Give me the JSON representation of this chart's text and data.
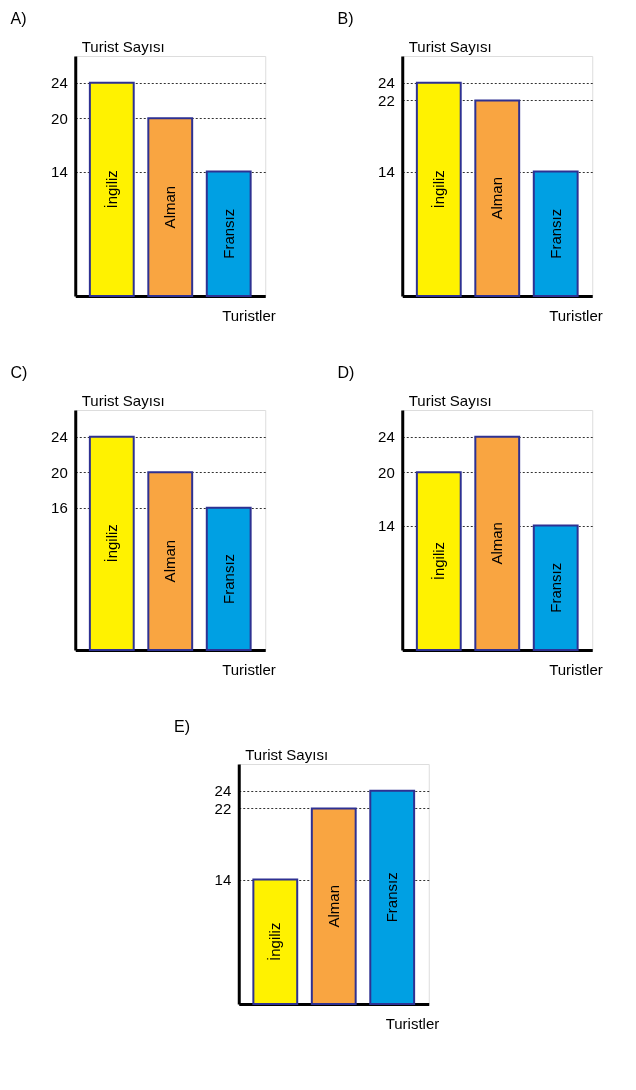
{
  "chart_data": [
    {
      "type": "bar",
      "title": "A)",
      "xlabel": "Turistler",
      "ylabel": "Turist Sayısı",
      "categories": [
        "İngiliz",
        "Alman",
        "Fransız"
      ],
      "values": [
        24,
        20,
        14
      ],
      "colors": [
        "#fff200",
        "#f9a541",
        "#00a0e3"
      ],
      "ylim": [
        0,
        27
      ],
      "yticks": [
        14,
        20,
        24
      ],
      "grid": "y",
      "line_style": "dotted",
      "tick_labels": "y",
      "legend": false
    },
    {
      "type": "bar",
      "title": "B)",
      "xlabel": "Turistler",
      "ylabel": "Turist Sayısı",
      "categories": [
        "İngiliz",
        "Alman",
        "Fransız"
      ],
      "values": [
        24,
        22,
        14
      ],
      "colors": [
        "#fff200",
        "#f9a541",
        "#00a0e3"
      ],
      "ylim": [
        0,
        27
      ],
      "yticks": [
        14,
        22,
        24
      ],
      "grid": "y",
      "line_style": "dotted",
      "tick_labels": "y",
      "legend": false
    },
    {
      "type": "bar",
      "title": "C)",
      "xlabel": "Turistler",
      "ylabel": "Turist Sayısı",
      "categories": [
        "İngiliz",
        "Alman",
        "Fransız"
      ],
      "values": [
        24,
        20,
        16
      ],
      "colors": [
        "#fff200",
        "#f9a541",
        "#00a0e3"
      ],
      "ylim": [
        0,
        27
      ],
      "yticks": [
        16,
        20,
        24
      ],
      "grid": "y",
      "line_style": "dotted",
      "tick_labels": "y",
      "legend": false
    },
    {
      "type": "bar",
      "title": "D)",
      "xlabel": "Turistler",
      "ylabel": "Turist Sayısı",
      "categories": [
        "İngiliz",
        "Alman",
        "Fransız"
      ],
      "values": [
        20,
        24,
        14
      ],
      "colors": [
        "#fff200",
        "#f9a541",
        "#00a0e3"
      ],
      "ylim": [
        0,
        27
      ],
      "yticks": [
        14,
        20,
        24
      ],
      "grid": "y",
      "line_style": "dotted",
      "tick_labels": "y",
      "legend": false
    },
    {
      "type": "bar",
      "title": "E)",
      "xlabel": "Turistler",
      "ylabel": "Turist Sayısı",
      "categories": [
        "İngiliz",
        "Alman",
        "Fransız"
      ],
      "values": [
        14,
        22,
        24
      ],
      "colors": [
        "#fff200",
        "#f9a541",
        "#00a0e3"
      ],
      "ylim": [
        0,
        27
      ],
      "yticks": [
        14,
        22,
        24
      ],
      "grid": "y",
      "line_style": "dotted",
      "tick_labels": "y",
      "legend": false
    }
  ]
}
